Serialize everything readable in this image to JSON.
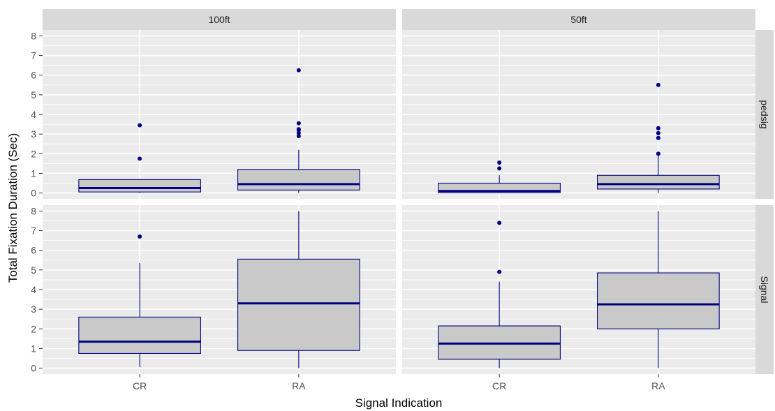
{
  "chart_data": {
    "type": "boxplot",
    "xlabel": "Signal Indication",
    "ylabel": "Total Fixation Duration (Sec)",
    "ylim": [
      -0.3,
      8.3
    ],
    "yticks": [
      0,
      1,
      2,
      3,
      4,
      5,
      6,
      7,
      8
    ],
    "categories": [
      "CR",
      "RA"
    ],
    "facet_cols": [
      "100ft",
      "50ft"
    ],
    "facet_rows": [
      "pedsig",
      "Signal"
    ],
    "colors": {
      "box_fill": "#c9c9c9",
      "box_line": "#000080",
      "panel_bg": "#ebebeb",
      "strip_bg": "#d9d9d9",
      "grid": "#ffffff"
    },
    "panels": [
      {
        "col": "100ft",
        "row": "pedsig",
        "boxes": [
          {
            "category": "CR",
            "lower_whisker": 0.0,
            "q1": 0.05,
            "median": 0.25,
            "q3": 0.68,
            "upper_whisker": 0.68,
            "outliers": [
              1.75,
              3.45
            ]
          },
          {
            "category": "RA",
            "lower_whisker": 0.0,
            "q1": 0.15,
            "median": 0.45,
            "q3": 1.2,
            "upper_whisker": 2.2,
            "outliers": [
              2.9,
              3.05,
              3.2,
              3.25,
              3.55,
              6.25
            ]
          }
        ]
      },
      {
        "col": "50ft",
        "row": "pedsig",
        "boxes": [
          {
            "category": "CR",
            "lower_whisker": 0.0,
            "q1": 0.02,
            "median": 0.1,
            "q3": 0.5,
            "upper_whisker": 0.9,
            "outliers": [
              1.25,
              1.55
            ]
          },
          {
            "category": "RA",
            "lower_whisker": 0.0,
            "q1": 0.2,
            "median": 0.45,
            "q3": 0.9,
            "upper_whisker": 1.9,
            "outliers": [
              2.0,
              2.8,
              3.05,
              3.3,
              5.5
            ]
          }
        ]
      },
      {
        "col": "100ft",
        "row": "Signal",
        "boxes": [
          {
            "category": "CR",
            "lower_whisker": 0.05,
            "q1": 0.75,
            "median": 1.35,
            "q3": 2.6,
            "upper_whisker": 5.35,
            "outliers": [
              6.7
            ]
          },
          {
            "category": "RA",
            "lower_whisker": 0.0,
            "q1": 0.9,
            "median": 3.3,
            "q3": 5.55,
            "upper_whisker": 8.0,
            "outliers": []
          }
        ]
      },
      {
        "col": "50ft",
        "row": "Signal",
        "boxes": [
          {
            "category": "CR",
            "lower_whisker": 0.0,
            "q1": 0.45,
            "median": 1.25,
            "q3": 2.15,
            "upper_whisker": 4.4,
            "outliers": [
              4.9,
              7.4
            ]
          },
          {
            "category": "RA",
            "lower_whisker": 0.0,
            "q1": 2.0,
            "median": 3.25,
            "q3": 4.85,
            "upper_whisker": 8.0,
            "outliers": []
          }
        ]
      }
    ]
  }
}
